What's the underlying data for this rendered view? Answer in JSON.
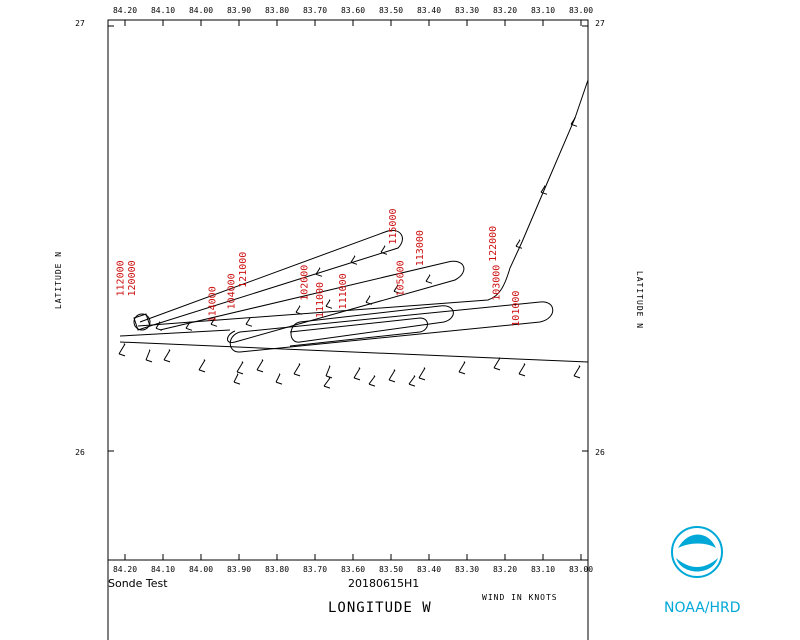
{
  "plot": {
    "lon_ticks": [
      "84.20",
      "84.10",
      "84.00",
      "83.90",
      "83.80",
      "83.70",
      "83.60",
      "83.50",
      "83.40",
      "83.30",
      "83.20",
      "83.10",
      "83.00"
    ],
    "lat_ticks": [
      "27",
      "26"
    ],
    "y_axis_label_left": "LATITUDE  N",
    "y_axis_label_right": "LATITUDE  N",
    "x_axis_label": "LONGITUDE  W",
    "wind_units_note": "WIND IN KNOTS",
    "caption_left": "Sonde Test",
    "caption_center": "20180615H1",
    "logo_text": "NOAA/HRD",
    "logo_emblem_text": "NOAA",
    "track_color": "#000000",
    "time_label_color": "#cc1111",
    "logo_color": "#00a8d8"
  },
  "chart_data": {
    "type": "map-track",
    "x_range_lon_w": [
      84.25,
      83.0
    ],
    "y_range_lat_n": [
      25.75,
      27.0
    ],
    "time_labels": [
      {
        "text": "112000",
        "lon": 84.21,
        "lat": 26.36
      },
      {
        "text": "120000",
        "lon": 84.18,
        "lat": 26.36
      },
      {
        "text": "114000",
        "lon": 83.97,
        "lat": 26.3
      },
      {
        "text": "104000",
        "lon": 83.92,
        "lat": 26.33
      },
      {
        "text": "121000",
        "lon": 83.89,
        "lat": 26.38
      },
      {
        "text": "102000",
        "lon": 83.73,
        "lat": 26.35
      },
      {
        "text": "111000",
        "lon": 83.69,
        "lat": 26.31
      },
      {
        "text": "111000",
        "lon": 83.63,
        "lat": 26.33
      },
      {
        "text": "115000",
        "lon": 83.5,
        "lat": 26.48
      },
      {
        "text": "105000",
        "lon": 83.48,
        "lat": 26.36
      },
      {
        "text": "113000",
        "lon": 83.43,
        "lat": 26.43
      },
      {
        "text": "122000",
        "lon": 83.24,
        "lat": 26.44
      },
      {
        "text": "103000",
        "lon": 83.23,
        "lat": 26.35
      },
      {
        "text": "101000",
        "lon": 83.18,
        "lat": 26.29
      }
    ]
  }
}
